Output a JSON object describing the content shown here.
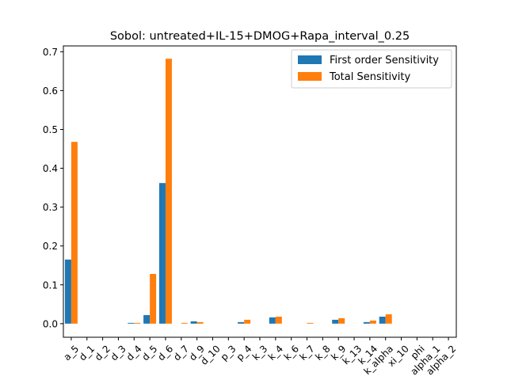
{
  "chart_data": {
    "type": "bar",
    "title": "Sobol: untreated+IL-15+DMOG+Rapa_interval_0.25",
    "xlabel": "",
    "ylabel": "",
    "ylim": [
      -0.035,
      0.715
    ],
    "yticks": [
      0.0,
      0.1,
      0.2,
      0.3,
      0.4,
      0.5,
      0.6,
      0.7
    ],
    "ytick_labels": [
      "0.0",
      "0.1",
      "0.2",
      "0.3",
      "0.4",
      "0.5",
      "0.6",
      "0.7"
    ],
    "categories": [
      "a_5",
      "d_1",
      "d_2",
      "d_3",
      "d_4",
      "d_5",
      "d_6",
      "d_7",
      "d_9",
      "d_10",
      "p_3",
      "p_4",
      "k_3",
      "k_4",
      "k_6",
      "k_7",
      "k_8",
      "k_9",
      "k_13",
      "k_14",
      "k_alpha",
      "xi_10",
      "phi",
      "alpha_1",
      "alpha_2"
    ],
    "series": [
      {
        "name": "First order Sensitivity",
        "color": "#1f77b4",
        "values": [
          0.165,
          0.0,
          0.0,
          0.0,
          0.002,
          0.022,
          0.362,
          0.0,
          0.006,
          0.0,
          0.0,
          0.004,
          0.0,
          0.016,
          0.0,
          0.0,
          0.0,
          0.01,
          0.0,
          0.004,
          0.018,
          0.0,
          0.0,
          0.0,
          0.0
        ]
      },
      {
        "name": "Total Sensitivity",
        "color": "#ff7f0e",
        "values": [
          0.468,
          0.0,
          0.0,
          0.0,
          0.002,
          0.128,
          0.682,
          0.002,
          0.004,
          0.0,
          0.0,
          0.01,
          0.0,
          0.018,
          0.0,
          0.002,
          0.0,
          0.014,
          0.0,
          0.008,
          0.024,
          0.0,
          0.0,
          0.0,
          0.0
        ]
      }
    ],
    "grid": false,
    "legend_position": "top-right"
  }
}
